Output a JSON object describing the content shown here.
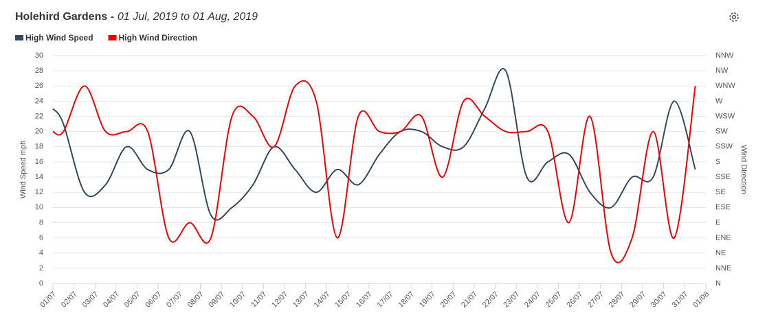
{
  "chart_data": {
    "type": "line",
    "title": "Holehird Gardens -",
    "subtitle": "01 Jul, 2019 to 01 Aug, 2019",
    "ylabel": "Wind Speed mph",
    "y2label": "Wind Direction",
    "grid": true,
    "legend": "top-left",
    "xlim": [
      0,
      31
    ],
    "xticks": [
      {
        "value": 0,
        "label": "01/07"
      },
      {
        "value": 1,
        "label": "02/07"
      },
      {
        "value": 2,
        "label": "03/07"
      },
      {
        "value": 3,
        "label": "04/07"
      },
      {
        "value": 4,
        "label": "05/07"
      },
      {
        "value": 5,
        "label": "06/07"
      },
      {
        "value": 6,
        "label": "07/07"
      },
      {
        "value": 7,
        "label": "08/07"
      },
      {
        "value": 8,
        "label": "09/07"
      },
      {
        "value": 9,
        "label": "10/07"
      },
      {
        "value": 10,
        "label": "11/07"
      },
      {
        "value": 11,
        "label": "12/07"
      },
      {
        "value": 12,
        "label": "13/07"
      },
      {
        "value": 13,
        "label": "14/07"
      },
      {
        "value": 14,
        "label": "15/07"
      },
      {
        "value": 15,
        "label": "16/07"
      },
      {
        "value": 16,
        "label": "17/07"
      },
      {
        "value": 17,
        "label": "18/07"
      },
      {
        "value": 18,
        "label": "19/07"
      },
      {
        "value": 19,
        "label": "20/07"
      },
      {
        "value": 20,
        "label": "21/07"
      },
      {
        "value": 21,
        "label": "22/07"
      },
      {
        "value": 22,
        "label": "23/07"
      },
      {
        "value": 23,
        "label": "24/07"
      },
      {
        "value": 24,
        "label": "25/07"
      },
      {
        "value": 25,
        "label": "26/07"
      },
      {
        "value": 26,
        "label": "27/07"
      },
      {
        "value": 27,
        "label": "28/07"
      },
      {
        "value": 28,
        "label": "29/07"
      },
      {
        "value": 29,
        "label": "30/07"
      },
      {
        "value": 30,
        "label": "31/07"
      },
      {
        "value": 31,
        "label": "01/08"
      }
    ],
    "ylim": [
      0,
      30
    ],
    "yticks": [
      0,
      2,
      4,
      6,
      8,
      10,
      12,
      14,
      16,
      18,
      20,
      22,
      24,
      26,
      28,
      30
    ],
    "y2lim": [
      0,
      30
    ],
    "y2ticks": [
      {
        "value": 0,
        "label": "N"
      },
      {
        "value": 2,
        "label": "NNE"
      },
      {
        "value": 4,
        "label": "NE"
      },
      {
        "value": 6,
        "label": "ENE"
      },
      {
        "value": 8,
        "label": "E"
      },
      {
        "value": 10,
        "label": "ESE"
      },
      {
        "value": 12,
        "label": "SE"
      },
      {
        "value": 14,
        "label": "SSE"
      },
      {
        "value": 16,
        "label": "S"
      },
      {
        "value": 18,
        "label": "SSW"
      },
      {
        "value": 20,
        "label": "SW"
      },
      {
        "value": 22,
        "label": "WSW"
      },
      {
        "value": 24,
        "label": "W"
      },
      {
        "value": 26,
        "label": "WNW"
      },
      {
        "value": 28,
        "label": "NW"
      },
      {
        "value": 30,
        "label": "NNW"
      }
    ],
    "x": [
      0,
      0.5,
      1.5,
      2.5,
      3.5,
      4.5,
      5.5,
      6.5,
      7.5,
      8.5,
      9.5,
      10.5,
      11.5,
      12.5,
      13.5,
      14.5,
      15.5,
      16.5,
      17.5,
      18.5,
      19.5,
      20.5,
      21.5,
      22.5,
      23.5,
      24.5,
      25.5,
      26.5,
      27.5,
      28.5,
      29.5,
      30.5
    ],
    "series": [
      {
        "name": "High Wind Speed",
        "color": "#34495e",
        "values": [
          23,
          21,
          12,
          13,
          18,
          15,
          15,
          20,
          9,
          10,
          13,
          18,
          15,
          12,
          15,
          13,
          17,
          20,
          20,
          18,
          18,
          23,
          28,
          14,
          16,
          17,
          12,
          10,
          14,
          14,
          24,
          15
        ]
      },
      {
        "name": "High Wind Direction",
        "color": "#ee0000",
        "axis": "y2",
        "values": [
          20,
          20,
          26,
          20,
          20,
          20,
          6,
          8,
          6,
          22,
          22,
          18,
          26,
          24,
          6,
          22,
          20,
          20,
          22,
          14,
          24,
          22,
          20,
          20,
          20,
          8,
          22,
          4,
          6,
          20,
          6,
          26
        ]
      }
    ]
  }
}
